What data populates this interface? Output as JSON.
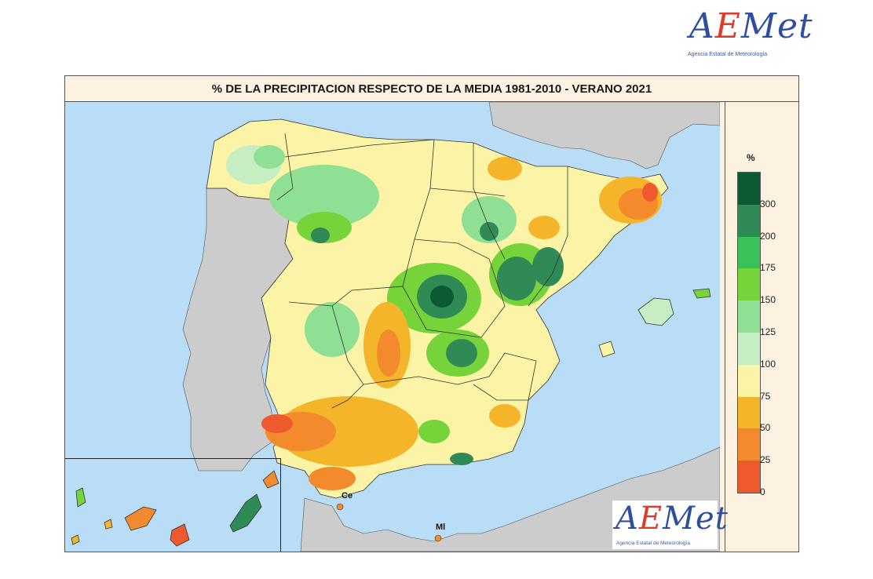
{
  "logo_top": {
    "word_a": "A",
    "word_e": "E",
    "word_rest": "Met",
    "subtitle": "Agencia Estatal de Meteorología"
  },
  "logo_map": {
    "word_a": "A",
    "word_e": "E",
    "word_rest": "Met",
    "subtitle": "Agencia Estatal de Meteorología"
  },
  "title": "% DE LA PRECIPITACION RESPECTO DE LA MEDIA 1981-2010 -  VERANO 2021",
  "labels": {
    "ceuta": "Ce",
    "melilla": "Ml"
  },
  "legend": {
    "unit": "%",
    "ticks": [
      "300",
      "200",
      "175",
      "150",
      "125",
      "100",
      "75",
      "50",
      "25",
      "0"
    ],
    "colors": [
      "#0b5a32",
      "#2f8a55",
      "#39c15a",
      "#76d43a",
      "#8fe094",
      "#c7eec3",
      "#fbf4a6",
      "#f4b52a",
      "#f48a2e",
      "#ee5a2e"
    ]
  }
}
